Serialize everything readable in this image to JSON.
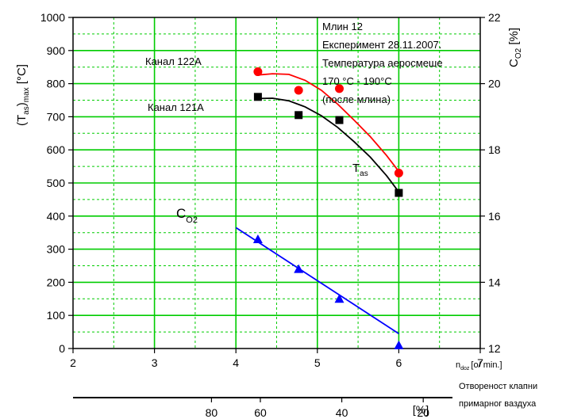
{
  "chart_data": {
    "type": "line",
    "x_axis": {
      "label_main": "n",
      "label_sub": "doz",
      "label_tail": "[o/ min.]",
      "range": [
        2,
        7
      ],
      "ticks": [
        "2",
        "3",
        "4",
        "5",
        "6",
        "7"
      ]
    },
    "y_left": {
      "label_main": "(T",
      "label_sub1": "as",
      "label_mid": ")",
      "label_sub2": "max",
      "label_tail": " [°C]",
      "range": [
        0,
        1000
      ],
      "ticks": [
        "0",
        "100",
        "200",
        "300",
        "400",
        "500",
        "600",
        "700",
        "800",
        "900",
        "1000"
      ]
    },
    "y_right": {
      "label_main": "C",
      "label_sub": "O2",
      "label_tail": " [%]",
      "range": [
        12,
        22
      ],
      "ticks": [
        "12",
        "14",
        "16",
        "18",
        "20",
        "22"
      ]
    },
    "x2_axis": {
      "unit": "[%]",
      "ticks": [
        "80",
        "60",
        "40",
        "20"
      ],
      "tick_positions_ndoz": [
        3.7,
        4.3,
        5.3,
        6.3
      ],
      "caption_line1": "Отвореност клапни",
      "caption_line2": "примарног ваздуха"
    },
    "series": [
      {
        "name": "Канал 122А",
        "axis": "left",
        "marker": "circle",
        "color": "#ff0000",
        "points": [
          [
            4.27,
            836
          ],
          [
            4.77,
            780
          ],
          [
            5.27,
            785
          ],
          [
            6.0,
            530
          ]
        ],
        "fit": [
          [
            4.27,
            826
          ],
          [
            4.45,
            830
          ],
          [
            4.65,
            828
          ],
          [
            4.85,
            810
          ],
          [
            5.05,
            780
          ],
          [
            5.25,
            738
          ],
          [
            5.45,
            690
          ],
          [
            5.65,
            640
          ],
          [
            5.85,
            583
          ],
          [
            6.0,
            535
          ]
        ]
      },
      {
        "name": "Канал 121А",
        "axis": "left",
        "marker": "square",
        "color": "#000000",
        "points": [
          [
            4.27,
            760
          ],
          [
            4.77,
            705
          ],
          [
            5.27,
            690
          ],
          [
            6.0,
            470
          ]
        ],
        "fit": [
          [
            4.27,
            755
          ],
          [
            4.45,
            756
          ],
          [
            4.65,
            748
          ],
          [
            4.85,
            730
          ],
          [
            5.05,
            703
          ],
          [
            5.25,
            668
          ],
          [
            5.45,
            625
          ],
          [
            5.65,
            578
          ],
          [
            5.85,
            522
          ],
          [
            6.0,
            473
          ]
        ]
      },
      {
        "name": "C",
        "name_sub": "O2",
        "axis": "right",
        "marker": "triangle",
        "color": "#0000ff",
        "points": [
          [
            4.27,
            15.3
          ],
          [
            4.77,
            14.4
          ],
          [
            5.27,
            13.5
          ],
          [
            6.0,
            12.1
          ]
        ],
        "fit": [
          [
            4.0,
            15.65
          ],
          [
            6.0,
            12.45
          ]
        ]
      }
    ],
    "annotations": {
      "label_122": "Канал 122А",
      "label_121": "Канал 121А",
      "tas_main": "T",
      "tas_sub": "as",
      "info": [
        "Млин 12",
        "Експеримент 28.11.2007.",
        "Температура аеросмеше",
        "170 °C - 190°C",
        "(после млина)"
      ]
    },
    "grid": true,
    "grid_color": "#00cc00"
  }
}
